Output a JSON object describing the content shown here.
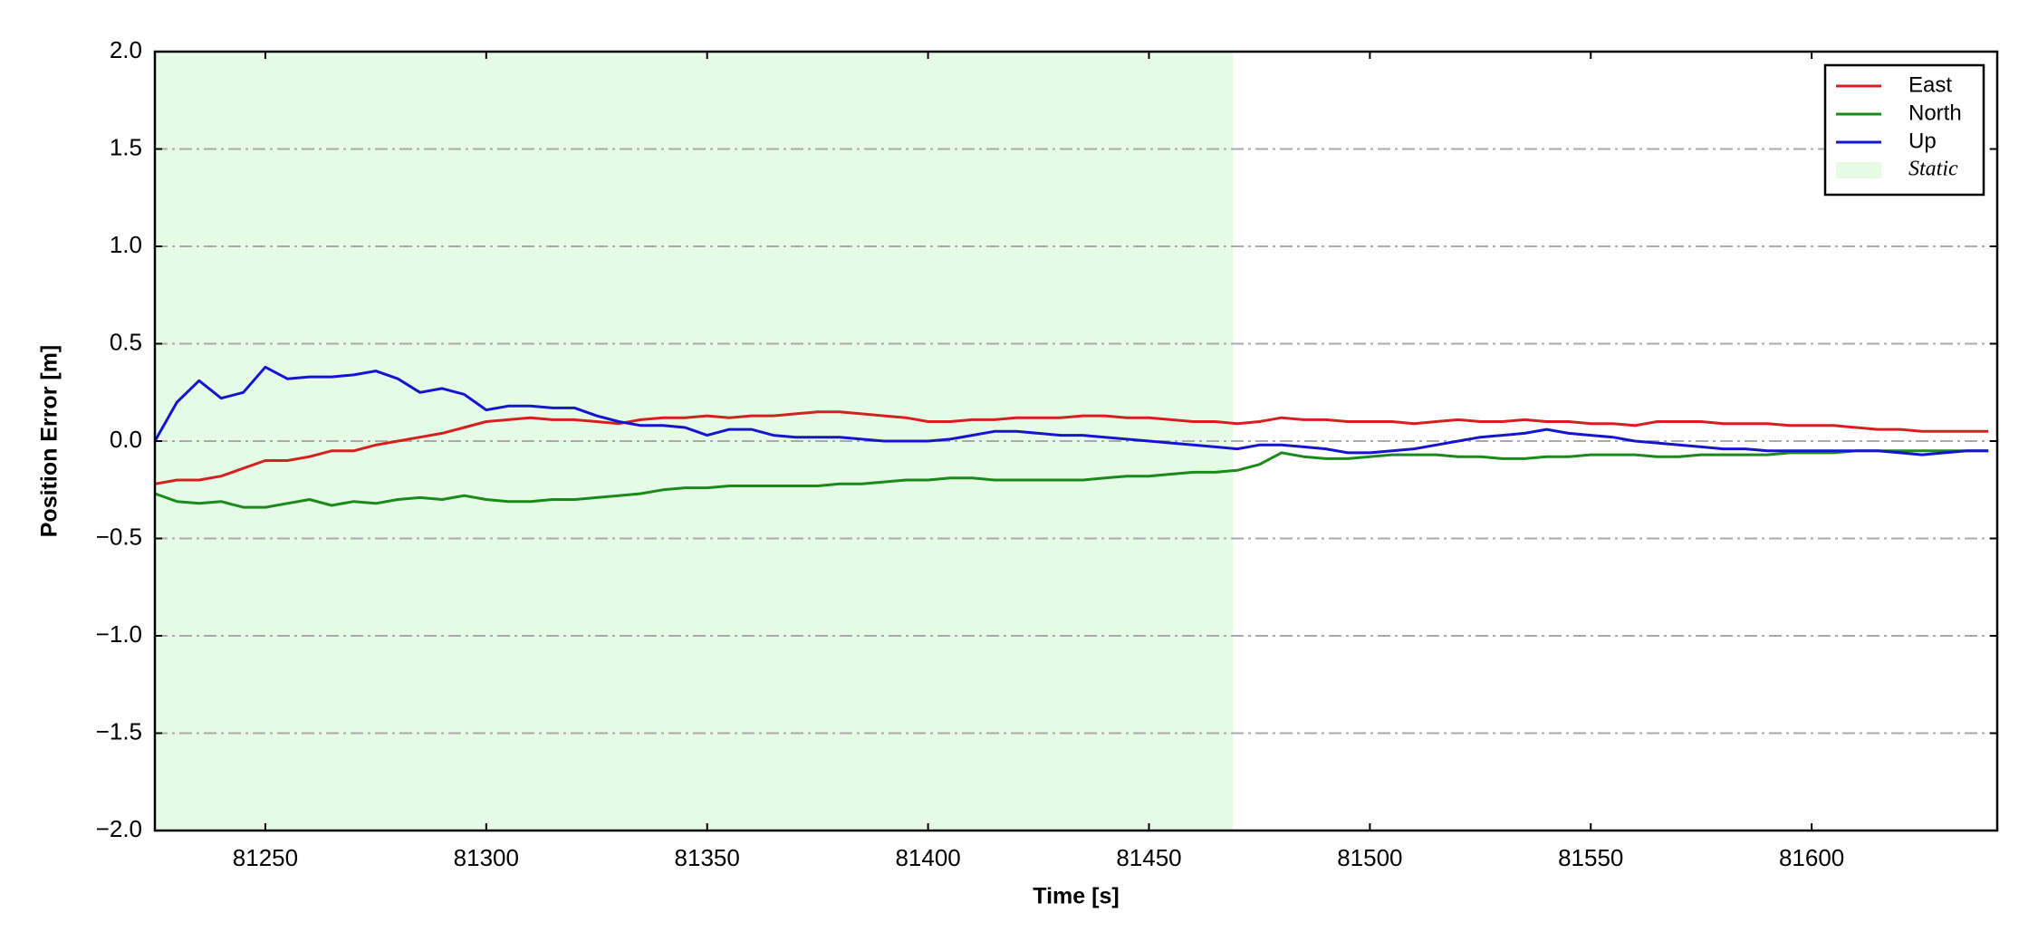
{
  "chart_data": {
    "type": "line",
    "xlabel": "Time [s]",
    "ylabel": "Position Error [m]",
    "x": [
      81225,
      81230,
      81235,
      81240,
      81245,
      81250,
      81255,
      81260,
      81265,
      81270,
      81275,
      81280,
      81285,
      81290,
      81295,
      81300,
      81305,
      81310,
      81315,
      81320,
      81325,
      81330,
      81335,
      81340,
      81345,
      81350,
      81355,
      81360,
      81365,
      81370,
      81375,
      81380,
      81385,
      81390,
      81395,
      81400,
      81405,
      81410,
      81415,
      81420,
      81425,
      81430,
      81435,
      81440,
      81445,
      81450,
      81455,
      81460,
      81465,
      81470,
      81475,
      81480,
      81485,
      81490,
      81495,
      81500,
      81505,
      81510,
      81515,
      81520,
      81525,
      81530,
      81535,
      81540,
      81545,
      81550,
      81555,
      81560,
      81565,
      81570,
      81575,
      81580,
      81585,
      81590,
      81595,
      81600,
      81605,
      81610,
      81615,
      81620,
      81625,
      81630,
      81635,
      81640
    ],
    "series": [
      {
        "name": "East",
        "color": "#d62020",
        "values": [
          -0.22,
          -0.2,
          -0.2,
          -0.18,
          -0.14,
          -0.1,
          -0.1,
          -0.08,
          -0.05,
          -0.05,
          -0.02,
          0.0,
          0.02,
          0.04,
          0.07,
          0.1,
          0.11,
          0.12,
          0.11,
          0.11,
          0.1,
          0.09,
          0.11,
          0.12,
          0.12,
          0.13,
          0.12,
          0.13,
          0.13,
          0.14,
          0.15,
          0.15,
          0.14,
          0.13,
          0.12,
          0.1,
          0.1,
          0.11,
          0.11,
          0.12,
          0.12,
          0.12,
          0.13,
          0.13,
          0.12,
          0.12,
          0.11,
          0.1,
          0.1,
          0.09,
          0.1,
          0.12,
          0.11,
          0.11,
          0.1,
          0.1,
          0.1,
          0.09,
          0.1,
          0.11,
          0.1,
          0.1,
          0.11,
          0.1,
          0.1,
          0.09,
          0.09,
          0.08,
          0.1,
          0.1,
          0.1,
          0.09,
          0.09,
          0.09,
          0.08,
          0.08,
          0.08,
          0.07,
          0.06,
          0.06,
          0.05,
          0.05,
          0.05,
          0.05
        ]
      },
      {
        "name": "North",
        "color": "#1a8a1a",
        "values": [
          -0.27,
          -0.31,
          -0.32,
          -0.31,
          -0.34,
          -0.34,
          -0.32,
          -0.3,
          -0.33,
          -0.31,
          -0.32,
          -0.3,
          -0.29,
          -0.3,
          -0.28,
          -0.3,
          -0.31,
          -0.31,
          -0.3,
          -0.3,
          -0.29,
          -0.28,
          -0.27,
          -0.25,
          -0.24,
          -0.24,
          -0.23,
          -0.23,
          -0.23,
          -0.23,
          -0.23,
          -0.22,
          -0.22,
          -0.21,
          -0.2,
          -0.2,
          -0.19,
          -0.19,
          -0.2,
          -0.2,
          -0.2,
          -0.2,
          -0.2,
          -0.19,
          -0.18,
          -0.18,
          -0.17,
          -0.16,
          -0.16,
          -0.15,
          -0.12,
          -0.06,
          -0.08,
          -0.09,
          -0.09,
          -0.08,
          -0.07,
          -0.07,
          -0.07,
          -0.08,
          -0.08,
          -0.09,
          -0.09,
          -0.08,
          -0.08,
          -0.07,
          -0.07,
          -0.07,
          -0.08,
          -0.08,
          -0.07,
          -0.07,
          -0.07,
          -0.07,
          -0.06,
          -0.06,
          -0.06,
          -0.05,
          -0.05,
          -0.05,
          -0.05,
          -0.05,
          -0.05,
          -0.05
        ]
      },
      {
        "name": "Up",
        "color": "#1515d0",
        "values": [
          0.0,
          0.2,
          0.31,
          0.22,
          0.25,
          0.38,
          0.32,
          0.33,
          0.33,
          0.34,
          0.36,
          0.32,
          0.25,
          0.27,
          0.24,
          0.16,
          0.18,
          0.18,
          0.17,
          0.17,
          0.13,
          0.1,
          0.08,
          0.08,
          0.07,
          0.03,
          0.06,
          0.06,
          0.03,
          0.02,
          0.02,
          0.02,
          0.01,
          0.0,
          0.0,
          0.0,
          0.01,
          0.03,
          0.05,
          0.05,
          0.04,
          0.03,
          0.03,
          0.02,
          0.01,
          0.0,
          -0.01,
          -0.02,
          -0.03,
          -0.04,
          -0.02,
          -0.02,
          -0.03,
          -0.04,
          -0.06,
          -0.06,
          -0.05,
          -0.04,
          -0.02,
          0.0,
          0.02,
          0.03,
          0.04,
          0.06,
          0.04,
          0.03,
          0.02,
          0.0,
          -0.01,
          -0.02,
          -0.03,
          -0.04,
          -0.04,
          -0.05,
          -0.05,
          -0.05,
          -0.05,
          -0.05,
          -0.05,
          -0.06,
          -0.07,
          -0.06,
          -0.05,
          -0.05
        ]
      }
    ],
    "span": {
      "name": "Static",
      "color": "#e6fbe6",
      "x": [
        81225,
        81469
      ]
    },
    "xlim": [
      81225,
      81642
    ],
    "ylim": [
      -2.0,
      2.0
    ],
    "xticks": [
      81250,
      81300,
      81350,
      81400,
      81450,
      81500,
      81550,
      81600
    ],
    "yticks": [
      {
        "value": -2.0,
        "label": "−2.0"
      },
      {
        "value": -1.5,
        "label": "−1.5"
      },
      {
        "value": -1.0,
        "label": "−1.0"
      },
      {
        "value": -0.5,
        "label": "−0.5"
      },
      {
        "value": 0.0,
        "label": "0.0"
      },
      {
        "value": 0.5,
        "label": "0.5"
      },
      {
        "value": 1.0,
        "label": "1.0"
      },
      {
        "value": 1.5,
        "label": "1.5"
      },
      {
        "value": 2.0,
        "label": "2.0"
      }
    ],
    "grid": true,
    "legend": "upper right"
  }
}
